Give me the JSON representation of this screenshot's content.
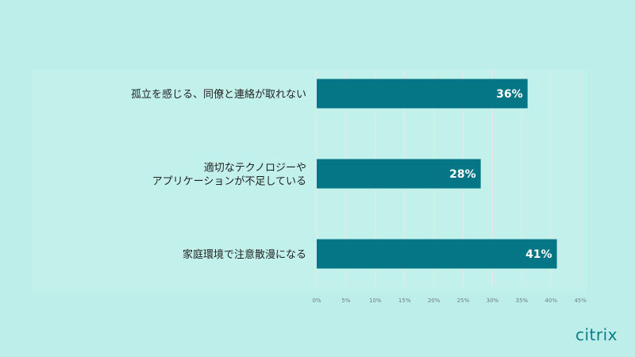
{
  "chart_data": {
    "type": "bar",
    "orientation": "horizontal",
    "categories": [
      [
        "孤立を感じる、同僚と連絡が取れない"
      ],
      [
        "適切なテクノロジーや",
        "アプリケーションが不足している"
      ],
      [
        "家庭環境で注意散漫になる"
      ]
    ],
    "values": [
      36,
      28,
      41
    ],
    "value_labels": [
      "36%",
      "28%",
      "41%"
    ],
    "xlim": [
      0,
      45
    ],
    "ticks": [
      "0%",
      "5%",
      "10%",
      "15%",
      "20%",
      "25%",
      "30%",
      "35%",
      "40%",
      "45%"
    ],
    "grid": true,
    "bar_color": "#057686"
  },
  "logo": {
    "text": "citrix"
  },
  "colors": {
    "background": "#bdeee9",
    "panel": "#c2f1ec",
    "bar": "#057686"
  }
}
